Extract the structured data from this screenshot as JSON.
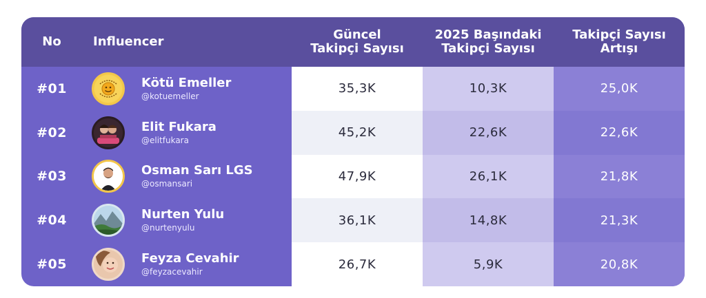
{
  "headers": {
    "no": "No",
    "influencer": "Influencer",
    "current_line1": "Güncel",
    "current_line2": "Takipçi Sayısı",
    "start_line1": "2025 Başındaki",
    "start_line2": "Takipçi Sayısı",
    "increase_line1": "Takipçi Sayısı",
    "increase_line2": "Artışı"
  },
  "rows": [
    {
      "rank": "#01",
      "name": "Kötü Emeller",
      "handle": "@kotuemeller",
      "current": "35,3K",
      "start": "10,3K",
      "increase": "25,0K",
      "avatar_icon": "emoji-logo-avatar"
    },
    {
      "rank": "#02",
      "name": "Elit Fukara",
      "handle": "@elitfukara",
      "current": "45,2K",
      "start": "22,6K",
      "increase": "22,6K",
      "avatar_icon": "couple-photo-avatar"
    },
    {
      "rank": "#03",
      "name": "Osman Sarı LGS",
      "handle": "@osmansari",
      "current": "47,9K",
      "start": "26,1K",
      "increase": "21,8K",
      "avatar_icon": "man-portrait-avatar"
    },
    {
      "rank": "#04",
      "name": "Nurten Yulu",
      "handle": "@nurtenyulu",
      "current": "36,1K",
      "start": "14,8K",
      "increase": "21,3K",
      "avatar_icon": "landscape-avatar"
    },
    {
      "rank": "#05",
      "name": "Feyza Cevahir",
      "handle": "@feyzacevahir",
      "current": "26,7K",
      "start": "5,9K",
      "increase": "20,8K",
      "avatar_icon": "woman-portrait-avatar"
    }
  ],
  "colors": {
    "header_bg": "#5a4f9e",
    "body_bg": "#6e62c8",
    "avatar_ring": "#f3c64a"
  }
}
